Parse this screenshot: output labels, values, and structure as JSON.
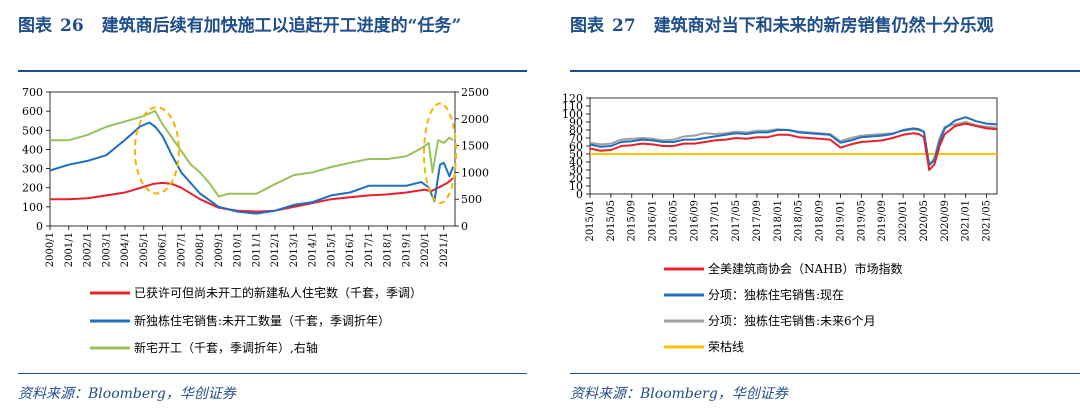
{
  "figure1": {
    "label": "图表",
    "number": "26",
    "title": "建筑商后续有加快施工以追赶开工进度的“任务”",
    "source": "资料来源：Bloomberg，华创证券"
  },
  "figure2": {
    "label": "图表",
    "number": "27",
    "title": "建筑商对当下和未来的新房销售仍然十分乐观",
    "source": "资料来源：Bloomberg，华创证券"
  },
  "chart_data": [
    {
      "type": "line",
      "title": "建筑商后续有加快施工以追赶开工进度的“任务”",
      "x_ticks": [
        "2000/1",
        "2001/1",
        "2002/1",
        "2003/1",
        "2004/1",
        "2005/1",
        "2006/1",
        "2007/1",
        "2008/1",
        "2009/1",
        "2010/1",
        "2011/1",
        "2012/1",
        "2013/1",
        "2014/1",
        "2015/1",
        "2016/1",
        "2017/1",
        "2018/1",
        "2019/1",
        "2020/1",
        "2021/1"
      ],
      "x_range": [
        2000.0,
        2021.6
      ],
      "ylim_left": [
        0,
        700
      ],
      "yticks_left": [
        0,
        100,
        200,
        300,
        400,
        500,
        600,
        700
      ],
      "ylim_right": [
        0,
        2500
      ],
      "yticks_right": [
        0,
        500,
        1000,
        1500,
        2000,
        2500
      ],
      "legend_position": "bottom",
      "series": [
        {
          "name": "已获许可但尚未开工的新建私人住宅数（千套，季调）",
          "axis": "left",
          "color": "#e8202a",
          "x": [
            2000,
            2001,
            2002,
            2003,
            2004,
            2005,
            2005.5,
            2006,
            2006.5,
            2007,
            2008,
            2009,
            2010,
            2011,
            2012,
            2013,
            2014,
            2015,
            2016,
            2017,
            2018,
            2019,
            2020,
            2020.3,
            2020.8,
            2021.2,
            2021.5
          ],
          "y": [
            140,
            140,
            145,
            160,
            175,
            205,
            220,
            225,
            220,
            200,
            140,
            95,
            80,
            75,
            80,
            100,
            120,
            140,
            150,
            160,
            165,
            175,
            190,
            180,
            205,
            225,
            250
          ]
        },
        {
          "name": "新独栋住宅销售:未开工数量（千套，季调折年）",
          "axis": "left",
          "color": "#1e6fc0",
          "x": [
            2000,
            2001,
            2002,
            2003,
            2004,
            2004.8,
            2005.3,
            2005.6,
            2006,
            2006.5,
            2007,
            2008,
            2009,
            2010,
            2011,
            2012,
            2013,
            2014,
            2015,
            2016,
            2017,
            2018,
            2019,
            2019.8,
            2020.2,
            2020.5,
            2020.8,
            2021,
            2021.3,
            2021.5
          ],
          "y": [
            290,
            320,
            340,
            370,
            450,
            520,
            540,
            520,
            470,
            370,
            280,
            170,
            100,
            75,
            65,
            80,
            110,
            125,
            160,
            175,
            210,
            210,
            210,
            230,
            200,
            130,
            320,
            330,
            260,
            310
          ]
        },
        {
          "name": "新宅开工（千套，季调折年）,右轴",
          "axis": "right",
          "color": "#97c45a",
          "x": [
            2000,
            2001,
            2002,
            2003,
            2004,
            2005,
            2005.6,
            2006,
            2006.5,
            2007,
            2007.5,
            2008,
            2008.5,
            2009,
            2009.5,
            2010,
            2011,
            2012,
            2013,
            2014,
            2015,
            2016,
            2017,
            2018,
            2019,
            2019.8,
            2020.2,
            2020.4,
            2020.7,
            2021,
            2021.3,
            2021.5
          ],
          "y": [
            1600,
            1600,
            1700,
            1850,
            1950,
            2050,
            2150,
            1900,
            1650,
            1400,
            1150,
            1000,
            800,
            550,
            600,
            600,
            600,
            780,
            950,
            1000,
            1100,
            1180,
            1250,
            1250,
            1300,
            1450,
            1550,
            1000,
            1600,
            1550,
            1650,
            1600
          ]
        }
      ],
      "annotations": [
        "dashed ellipse around 2005-2006 peak",
        "dashed ellipse around 2020-2021 rebound"
      ]
    },
    {
      "type": "line",
      "title": "建筑商对当下和未来的新房销售仍然十分乐观",
      "x_ticks": [
        "2015/01",
        "2015/05",
        "2015/09",
        "2016/01",
        "2016/05",
        "2016/09",
        "2017/01",
        "2017/05",
        "2017/09",
        "2018/01",
        "2018/05",
        "2018/09",
        "2019/01",
        "2019/05",
        "2019/09",
        "2020/01",
        "2020/05",
        "2020/09",
        "2021/01",
        "2021/05"
      ],
      "x_range": [
        0,
        78
      ],
      "ylim": [
        0,
        120
      ],
      "yticks": [
        0,
        10,
        20,
        30,
        40,
        50,
        60,
        70,
        80,
        90,
        100,
        110,
        120
      ],
      "legend_position": "bottom",
      "series": [
        {
          "name": "全美建筑商协会（NAHB）市场指数",
          "color": "#e8202a",
          "x": [
            0,
            2,
            4,
            6,
            8,
            10,
            12,
            14,
            16,
            18,
            20,
            22,
            24,
            26,
            28,
            30,
            32,
            34,
            36,
            38,
            40,
            42,
            44,
            46,
            48,
            50,
            52,
            54,
            56,
            58,
            60,
            62,
            63,
            64,
            65,
            66,
            67,
            68,
            70,
            72,
            74,
            76,
            78
          ],
          "y": [
            57,
            54,
            55,
            60,
            61,
            63,
            62,
            60,
            60,
            63,
            63,
            65,
            67,
            68,
            70,
            69,
            71,
            71,
            74,
            74,
            71,
            70,
            69,
            68,
            58,
            62,
            65,
            66,
            67,
            70,
            74,
            76,
            75,
            71,
            30,
            37,
            60,
            75,
            85,
            88,
            85,
            82,
            81
          ]
        },
        {
          "name": "分项：独栋住宅销售:现在",
          "color": "#1e6fc0",
          "x": [
            0,
            2,
            4,
            6,
            8,
            10,
            12,
            14,
            16,
            18,
            20,
            22,
            24,
            26,
            28,
            30,
            32,
            34,
            36,
            38,
            40,
            42,
            44,
            46,
            48,
            50,
            52,
            54,
            56,
            58,
            60,
            62,
            63,
            64,
            65,
            66,
            67,
            68,
            70,
            72,
            74,
            76,
            78
          ],
          "y": [
            62,
            59,
            60,
            65,
            66,
            68,
            67,
            65,
            65,
            68,
            68,
            70,
            72,
            74,
            76,
            75,
            77,
            77,
            80,
            80,
            77,
            76,
            75,
            74,
            64,
            67,
            71,
            72,
            73,
            75,
            80,
            82,
            81,
            78,
            36,
            42,
            66,
            82,
            92,
            96,
            91,
            88,
            87
          ]
        },
        {
          "name": "分项：独栋住宅销售:未来6个月",
          "color": "#a0a0a0",
          "x": [
            0,
            2,
            4,
            6,
            8,
            10,
            12,
            14,
            16,
            18,
            20,
            22,
            24,
            26,
            28,
            30,
            32,
            34,
            36,
            38,
            40,
            42,
            44,
            46,
            48,
            50,
            52,
            54,
            56,
            58,
            60,
            62,
            63,
            64,
            65,
            66,
            67,
            68,
            70,
            72,
            74,
            76,
            78
          ],
          "y": [
            64,
            62,
            63,
            68,
            69,
            70,
            69,
            67,
            68,
            72,
            73,
            76,
            75,
            76,
            78,
            77,
            79,
            79,
            81,
            80,
            78,
            77,
            76,
            75,
            66,
            70,
            73,
            74,
            75,
            76,
            79,
            81,
            80,
            78,
            36,
            45,
            70,
            84,
            87,
            90,
            86,
            84,
            83
          ]
        },
        {
          "name": "荣枯线",
          "color": "#ffc000",
          "x": [
            0,
            78
          ],
          "y": [
            50,
            50
          ]
        }
      ]
    }
  ]
}
